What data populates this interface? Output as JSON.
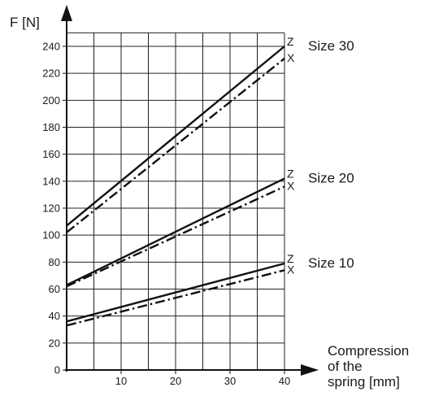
{
  "chart_data": {
    "type": "line",
    "ylabel": "F [N]",
    "xlabel_lines": [
      "Compression",
      "of the",
      "spring [mm]"
    ],
    "xlim": [
      0,
      40
    ],
    "ylim": [
      0,
      250
    ],
    "x_ticks": [
      10,
      20,
      30,
      40
    ],
    "y_ticks": [
      0,
      20,
      40,
      60,
      80,
      100,
      120,
      140,
      160,
      180,
      200,
      220,
      240
    ],
    "grid": true,
    "grid_x_step": 5,
    "grid_y_step": 20,
    "groups": [
      {
        "label": "Size 30",
        "series": [
          {
            "name": "Z",
            "style": "solid",
            "x": [
              0,
              40
            ],
            "y": [
              107,
              240
            ]
          },
          {
            "name": "X",
            "style": "dashdot",
            "x": [
              0,
              40
            ],
            "y": [
              102,
              231
            ]
          }
        ]
      },
      {
        "label": "Size 20",
        "series": [
          {
            "name": "Z",
            "style": "solid",
            "x": [
              0,
              40
            ],
            "y": [
              63,
              142
            ]
          },
          {
            "name": "X",
            "style": "dashdot",
            "x": [
              0,
              40
            ],
            "y": [
              62,
              136
            ]
          }
        ]
      },
      {
        "label": "Size 10",
        "series": [
          {
            "name": "Z",
            "style": "solid",
            "x": [
              0,
              40
            ],
            "y": [
              36,
              79
            ]
          },
          {
            "name": "X",
            "style": "dashdot",
            "x": [
              0,
              40
            ],
            "y": [
              33,
              74
            ]
          }
        ]
      }
    ]
  }
}
